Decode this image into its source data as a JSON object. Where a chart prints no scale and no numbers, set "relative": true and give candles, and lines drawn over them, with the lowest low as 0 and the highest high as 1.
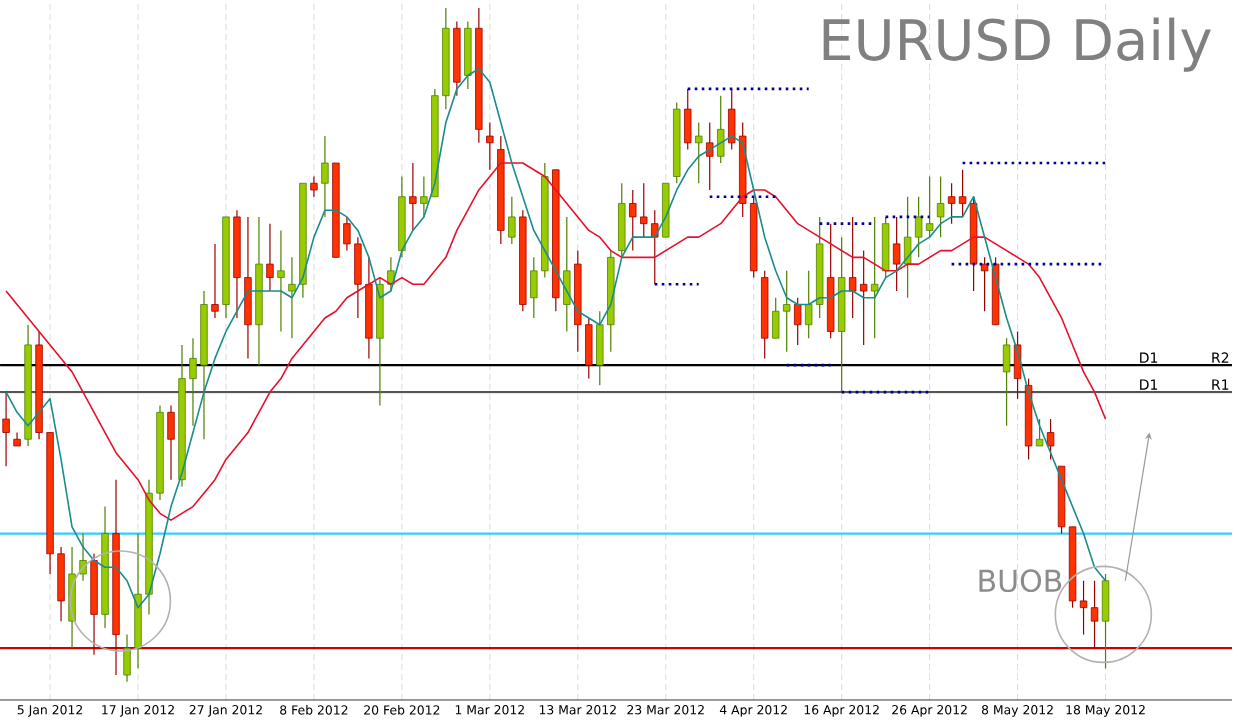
{
  "chart_data": {
    "type": "candlestick",
    "title": "EURUSD Daily",
    "relative": true,
    "grid": true,
    "categories": [
      null,
      null,
      null,
      null,
      "5 Jan 2012",
      null,
      null,
      null,
      null,
      null,
      null,
      null,
      "17 Jan 2012",
      null,
      null,
      null,
      null,
      null,
      null,
      null,
      "27 Jan 2012",
      null,
      null,
      null,
      null,
      null,
      null,
      null,
      "8 Feb 2012",
      null,
      null,
      null,
      null,
      null,
      null,
      null,
      "20 Feb 2012",
      null,
      null,
      null,
      null,
      null,
      null,
      null,
      "1 Mar 2012",
      null,
      null,
      null,
      null,
      null,
      null,
      null,
      "13 Mar 2012",
      null,
      null,
      null,
      null,
      null,
      null,
      null,
      "23 Mar 2012",
      null,
      null,
      null,
      null,
      null,
      null,
      null,
      "4 Apr 2012",
      null,
      null,
      null,
      null,
      null,
      null,
      null,
      "16 Apr 2012",
      null,
      null,
      null,
      null,
      null,
      null,
      null,
      "26 Apr 2012",
      null,
      null,
      null,
      null,
      null,
      null,
      null,
      "8 May 2012",
      null,
      null,
      null,
      null,
      null,
      null,
      null,
      "18 May 2012"
    ],
    "ohlc": [
      [
        0.39,
        0.43,
        0.32,
        0.37
      ],
      [
        0.36,
        0.37,
        0.35,
        0.35
      ],
      [
        0.36,
        0.53,
        0.35,
        0.5
      ],
      [
        0.5,
        0.52,
        0.36,
        0.37
      ],
      [
        0.37,
        0.37,
        0.16,
        0.19
      ],
      [
        0.19,
        0.2,
        0.09,
        0.12
      ],
      [
        0.09,
        0.2,
        0.05,
        0.16
      ],
      [
        0.16,
        0.22,
        0.15,
        0.18
      ],
      [
        0.18,
        0.19,
        0.04,
        0.1
      ],
      [
        0.1,
        0.26,
        0.08,
        0.22
      ],
      [
        0.22,
        0.3,
        0.01,
        0.07
      ],
      [
        0.01,
        0.07,
        0,
        0.05
      ],
      [
        0.05,
        0.22,
        0.02,
        0.13
      ],
      [
        0.13,
        0.3,
        0.1,
        0.28
      ],
      [
        0.28,
        0.41,
        0.27,
        0.4
      ],
      [
        0.4,
        0.41,
        0.3,
        0.36
      ],
      [
        0.3,
        0.5,
        0.29,
        0.45
      ],
      [
        0.45,
        0.51,
        0.38,
        0.48
      ],
      [
        0.47,
        0.58,
        0.36,
        0.56
      ],
      [
        0.56,
        0.65,
        0.54,
        0.55
      ],
      [
        0.56,
        0.69,
        0.54,
        0.69
      ],
      [
        0.69,
        0.7,
        0.54,
        0.6
      ],
      [
        0.6,
        0.69,
        0.48,
        0.53
      ],
      [
        0.53,
        0.69,
        0.47,
        0.62
      ],
      [
        0.62,
        0.68,
        0.58,
        0.6
      ],
      [
        0.6,
        0.67,
        0.52,
        0.61
      ],
      [
        0.58,
        0.63,
        0.51,
        0.59
      ],
      [
        0.59,
        0.74,
        0.57,
        0.74
      ],
      [
        0.74,
        0.75,
        0.72,
        0.73
      ],
      [
        0.74,
        0.81,
        0.69,
        0.77
      ],
      [
        0.77,
        0.77,
        0.63,
        0.63
      ],
      [
        0.68,
        0.69,
        0.64,
        0.65
      ],
      [
        0.65,
        0.66,
        0.54,
        0.59
      ],
      [
        0.59,
        0.63,
        0.48,
        0.51
      ],
      [
        0.51,
        0.6,
        0.41,
        0.59
      ],
      [
        0.59,
        0.63,
        0.58,
        0.61
      ],
      [
        0.64,
        0.75,
        0.63,
        0.72
      ],
      [
        0.72,
        0.77,
        0.67,
        0.71
      ],
      [
        0.71,
        0.75,
        0.69,
        0.72
      ],
      [
        0.72,
        0.88,
        0.72,
        0.87
      ],
      [
        0.87,
        1,
        0.85,
        0.97
      ],
      [
        0.97,
        0.98,
        0.87,
        0.89
      ],
      [
        0.9,
        0.98,
        0.88,
        0.97
      ],
      [
        0.97,
        1,
        0.8,
        0.82
      ],
      [
        0.81,
        0.83,
        0.76,
        0.8
      ],
      [
        0.79,
        0.81,
        0.65,
        0.67
      ],
      [
        0.66,
        0.72,
        0.65,
        0.69
      ],
      [
        0.69,
        0.7,
        0.55,
        0.56
      ],
      [
        0.57,
        0.63,
        0.54,
        0.61
      ],
      [
        0.61,
        0.77,
        0.6,
        0.75
      ],
      [
        0.76,
        0.76,
        0.55,
        0.57
      ],
      [
        0.56,
        0.69,
        0.52,
        0.61
      ],
      [
        0.62,
        0.64,
        0.49,
        0.53
      ],
      [
        0.53,
        0.54,
        0.45,
        0.47
      ],
      [
        0.47,
        0.55,
        0.44,
        0.53
      ],
      [
        0.53,
        0.64,
        0.49,
        0.63
      ],
      [
        0.64,
        0.74,
        0.63,
        0.71
      ],
      [
        0.71,
        0.73,
        0.64,
        0.69
      ],
      [
        0.69,
        0.74,
        0.66,
        0.68
      ],
      [
        0.68,
        0.7,
        0.59,
        0.66
      ],
      [
        0.66,
        0.74,
        0.66,
        0.74
      ],
      [
        0.75,
        0.86,
        0.74,
        0.85
      ],
      [
        0.85,
        0.88,
        0.79,
        0.8
      ],
      [
        0.8,
        0.83,
        0.74,
        0.81
      ],
      [
        0.8,
        0.83,
        0.73,
        0.78
      ],
      [
        0.78,
        0.87,
        0.77,
        0.82
      ],
      [
        0.85,
        0.88,
        0.79,
        0.8
      ],
      [
        0.81,
        0.83,
        0.69,
        0.71
      ],
      [
        0.71,
        0.72,
        0.6,
        0.61
      ],
      [
        0.6,
        0.61,
        0.48,
        0.51
      ],
      [
        0.51,
        0.57,
        0.51,
        0.55
      ],
      [
        0.55,
        0.61,
        0.49,
        0.56
      ],
      [
        0.56,
        0.57,
        0.5,
        0.53
      ],
      [
        0.53,
        0.61,
        0.51,
        0.56
      ],
      [
        0.56,
        0.69,
        0.54,
        0.65
      ],
      [
        0.6,
        0.68,
        0.51,
        0.52
      ],
      [
        0.52,
        0.66,
        0.43,
        0.6
      ],
      [
        0.6,
        0.69,
        0.54,
        0.58
      ],
      [
        0.59,
        0.64,
        0.5,
        0.58
      ],
      [
        0.58,
        0.69,
        0.51,
        0.59
      ],
      [
        0.61,
        0.69,
        0.6,
        0.68
      ],
      [
        0.65,
        0.69,
        0.58,
        0.62
      ],
      [
        0.62,
        0.72,
        0.57,
        0.66
      ],
      [
        0.66,
        0.72,
        0.63,
        0.69
      ],
      [
        0.67,
        0.75,
        0.66,
        0.68
      ],
      [
        0.69,
        0.75,
        0.66,
        0.71
      ],
      [
        0.72,
        0.74,
        0.68,
        0.71
      ],
      [
        0.72,
        0.76,
        0.69,
        0.71
      ],
      [
        0.71,
        0.72,
        0.58,
        0.62
      ],
      [
        0.62,
        0.63,
        0.55,
        0.61
      ],
      [
        0.62,
        0.63,
        0.53,
        0.53
      ],
      [
        0.46,
        0.51,
        0.38,
        0.5
      ],
      [
        0.5,
        0.52,
        0.42,
        0.45
      ],
      [
        0.44,
        0.45,
        0.33,
        0.35
      ],
      [
        0.35,
        0.39,
        0.35,
        0.36
      ],
      [
        0.37,
        0.39,
        0.33,
        0.35
      ],
      [
        0.32,
        0.32,
        0.22,
        0.23
      ],
      [
        0.23,
        0.23,
        0.11,
        0.12
      ],
      [
        0.12,
        0.15,
        0.07,
        0.11
      ],
      [
        0.11,
        0.15,
        0.05,
        0.09
      ],
      [
        0.09,
        0.16,
        0.02,
        0.15
      ]
    ],
    "series": [
      {
        "type": "line",
        "color": "#e8102a",
        "line_style": "solid",
        "values": [
          0.58,
          0.56,
          0.54,
          0.52,
          0.5,
          0.48,
          0.46,
          0.43,
          0.4,
          0.37,
          0.34,
          0.32,
          0.3,
          0.27,
          0.25,
          0.24,
          0.25,
          0.26,
          0.28,
          0.3,
          0.33,
          0.35,
          0.37,
          0.4,
          0.43,
          0.45,
          0.48,
          0.5,
          0.52,
          0.54,
          0.55,
          0.57,
          0.58,
          0.59,
          0.6,
          0.59,
          0.6,
          0.59,
          0.59,
          0.61,
          0.63,
          0.67,
          0.7,
          0.73,
          0.75,
          0.77,
          0.77,
          0.77,
          0.76,
          0.75,
          0.73,
          0.71,
          0.69,
          0.67,
          0.66,
          0.64,
          0.63,
          0.63,
          0.63,
          0.63,
          0.64,
          0.65,
          0.66,
          0.66,
          0.67,
          0.68,
          0.7,
          0.72,
          0.73,
          0.73,
          0.72,
          0.7,
          0.68,
          0.67,
          0.66,
          0.65,
          0.64,
          0.63,
          0.63,
          0.62,
          0.61,
          0.61,
          0.62,
          0.62,
          0.63,
          0.64,
          0.64,
          0.65,
          0.66,
          0.66,
          0.65,
          0.64,
          0.63,
          0.62,
          0.6,
          0.57,
          0.54,
          0.5,
          0.46,
          0.43,
          0.39
        ]
      },
      {
        "type": "line",
        "color": "#1a8c8c",
        "line_style": "solid",
        "values": [
          0.43,
          0.4,
          0.38,
          0.4,
          0.42,
          0.33,
          0.23,
          0.2,
          0.18,
          0.17,
          0.17,
          0.15,
          0.11,
          0.13,
          0.19,
          0.26,
          0.31,
          0.37,
          0.43,
          0.48,
          0.52,
          0.55,
          0.58,
          0.58,
          0.58,
          0.58,
          0.57,
          0.6,
          0.66,
          0.7,
          0.7,
          0.69,
          0.67,
          0.63,
          0.57,
          0.58,
          0.64,
          0.67,
          0.69,
          0.74,
          0.83,
          0.88,
          0.9,
          0.91,
          0.89,
          0.83,
          0.77,
          0.72,
          0.67,
          0.64,
          0.61,
          0.58,
          0.55,
          0.54,
          0.53,
          0.56,
          0.63,
          0.66,
          0.66,
          0.66,
          0.69,
          0.73,
          0.76,
          0.78,
          0.79,
          0.8,
          0.81,
          0.8,
          0.73,
          0.66,
          0.61,
          0.57,
          0.56,
          0.56,
          0.57,
          0.57,
          0.58,
          0.58,
          0.57,
          0.57,
          0.6,
          0.61,
          0.63,
          0.65,
          0.66,
          0.68,
          0.69,
          0.69,
          0.72,
          0.66,
          0.6,
          0.54,
          0.49,
          0.43,
          0.38,
          0.34,
          0.3,
          0.26,
          0.22,
          0.17,
          0.15
        ]
      },
      {
        "type": "line",
        "color": "#000099",
        "line_style": "dotted",
        "values": [
          null,
          null,
          null,
          null,
          null,
          null,
          null,
          null,
          null,
          null,
          null,
          null,
          null,
          null,
          null,
          null,
          null,
          null,
          null,
          null,
          null,
          null,
          null,
          null,
          null,
          null,
          null,
          null,
          null,
          null,
          null,
          null,
          null,
          null,
          null,
          null,
          null,
          null,
          null,
          null,
          null,
          null,
          null,
          null,
          null,
          null,
          null,
          null,
          null,
          null,
          null,
          null,
          null,
          null,
          null,
          null,
          null,
          null,
          null,
          0.59,
          0.59,
          0.59,
          0.59,
          0.59,
          null,
          null,
          null,
          null,
          null,
          null,
          null,
          null,
          null,
          null,
          0.68,
          0.68,
          0.68,
          0.68,
          0.68,
          0.68,
          null,
          null,
          null,
          null,
          null,
          null,
          null,
          0.77,
          0.77,
          0.77,
          0.77,
          0.77,
          0.77,
          0.77,
          0.77,
          0.77,
          0.77,
          0.77,
          0.77,
          0.77,
          0.77
        ]
      },
      {
        "type": "line",
        "color": "#000099",
        "line_style": "dotted",
        "values": [
          null,
          null,
          null,
          null,
          null,
          null,
          null,
          null,
          null,
          null,
          null,
          null,
          null,
          null,
          null,
          null,
          null,
          null,
          null,
          null,
          null,
          null,
          null,
          null,
          null,
          null,
          null,
          null,
          null,
          null,
          null,
          null,
          null,
          null,
          null,
          null,
          null,
          null,
          null,
          null,
          null,
          null,
          null,
          null,
          null,
          null,
          null,
          null,
          null,
          null,
          null,
          null,
          null,
          null,
          null,
          null,
          null,
          null,
          null,
          null,
          null,
          null,
          null,
          null,
          0.72,
          0.72,
          0.72,
          0.72,
          0.72,
          0.72,
          0.72,
          null,
          null,
          null,
          null,
          null,
          0.43,
          0.43,
          0.43,
          0.43,
          0.43,
          0.43,
          0.43,
          0.43,
          0.43,
          null,
          null,
          null,
          null,
          null,
          null,
          null,
          null,
          null,
          null,
          null,
          null,
          null,
          null,
          null,
          null
        ]
      },
      {
        "type": "line",
        "color": "#000099",
        "line_style": "dotted",
        "values": [
          null,
          null,
          null,
          null,
          null,
          null,
          null,
          null,
          null,
          null,
          null,
          null,
          null,
          null,
          null,
          null,
          null,
          null,
          null,
          null,
          null,
          null,
          null,
          null,
          null,
          null,
          null,
          null,
          null,
          null,
          null,
          null,
          null,
          null,
          null,
          null,
          null,
          null,
          null,
          null,
          null,
          null,
          null,
          null,
          null,
          null,
          null,
          null,
          null,
          null,
          null,
          null,
          null,
          null,
          null,
          null,
          null,
          null,
          null,
          null,
          null,
          null,
          0.88,
          0.88,
          0.88,
          0.88,
          0.88,
          0.88,
          0.88,
          0.88,
          0.88,
          0.88,
          0.88,
          0.88,
          null,
          null,
          null,
          null,
          null,
          null,
          null,
          null,
          null,
          null,
          null,
          null,
          0.62,
          0.62,
          0.62,
          0.62,
          0.62,
          0.62,
          0.62,
          0.62,
          0.62,
          0.62,
          0.62,
          0.62,
          0.62,
          0.62,
          0.62
        ]
      },
      {
        "type": "line",
        "color": "#000099",
        "line_style": "dotted",
        "values": [
          null,
          null,
          null,
          null,
          null,
          null,
          null,
          null,
          null,
          null,
          null,
          null,
          null,
          null,
          null,
          null,
          null,
          null,
          null,
          null,
          null,
          null,
          null,
          null,
          null,
          null,
          null,
          null,
          null,
          null,
          null,
          null,
          null,
          null,
          null,
          null,
          null,
          null,
          null,
          null,
          null,
          null,
          null,
          null,
          null,
          null,
          null,
          null,
          null,
          null,
          null,
          null,
          null,
          null,
          null,
          null,
          null,
          null,
          null,
          null,
          null,
          null,
          null,
          null,
          null,
          null,
          null,
          null,
          null,
          null,
          null,
          0.47,
          0.47,
          0.47,
          0.47,
          0.47,
          null,
          null,
          null,
          null,
          0.69,
          0.69,
          0.69,
          0.69,
          0.69,
          null,
          null,
          null,
          null,
          null,
          null,
          null,
          null,
          null,
          null,
          null,
          null,
          null,
          null,
          null,
          null
        ]
      }
    ],
    "ref_lines": [
      {
        "axis": "y",
        "value": 0.47,
        "label": "R2",
        "color": "#000000"
      },
      {
        "axis": "y",
        "value": 0.43,
        "label": "R1",
        "color": "#555555"
      },
      {
        "axis": "y",
        "value": 0.22,
        "color": "#33ccff"
      },
      {
        "axis": "y",
        "value": 0.05,
        "color": "#cc0000"
      }
    ],
    "annotations": [
      "BUOB",
      {
        "text": "D1",
        "y": 0.47
      },
      {
        "text": "D1",
        "y": 0.43
      }
    ]
  }
}
